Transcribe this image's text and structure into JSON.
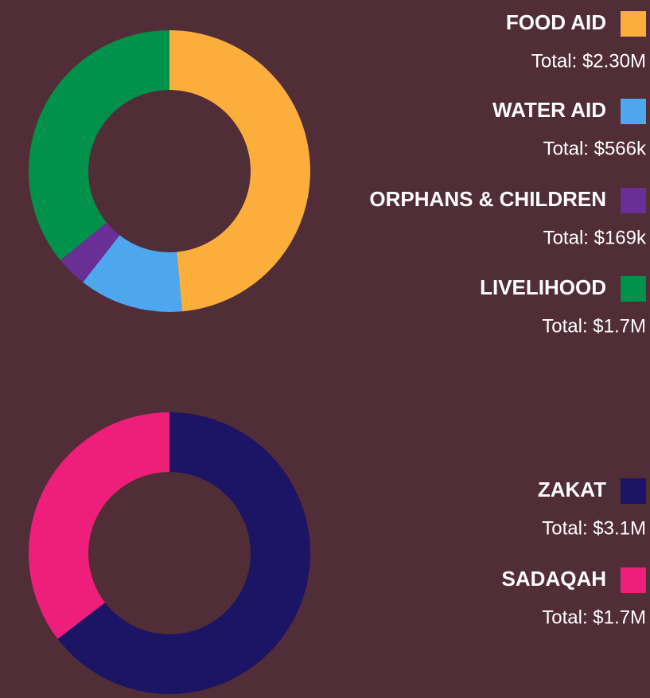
{
  "chart_data": [
    {
      "type": "donut",
      "categories": [
        "FOOD AID",
        "WATER AID",
        "ORPHANS & CHILDREN",
        "LIVELIHOOD"
      ],
      "values": [
        2300000,
        566000,
        169000,
        1700000
      ],
      "value_labels": [
        "Total: $2.30M",
        "Total: $566k",
        "Total: $169k",
        "Total: $1.7M"
      ],
      "colors": [
        "#fbae3c",
        "#4ea6ee",
        "#6a2f96",
        "#00924a"
      ]
    },
    {
      "type": "donut",
      "categories": [
        "ZAKAT",
        "SADAQAH"
      ],
      "values": [
        3100000,
        1700000
      ],
      "value_labels": [
        "Total: $3.1M",
        "Total: $1.7M"
      ],
      "colors": [
        "#1c1464",
        "#ee1f7a"
      ]
    }
  ]
}
